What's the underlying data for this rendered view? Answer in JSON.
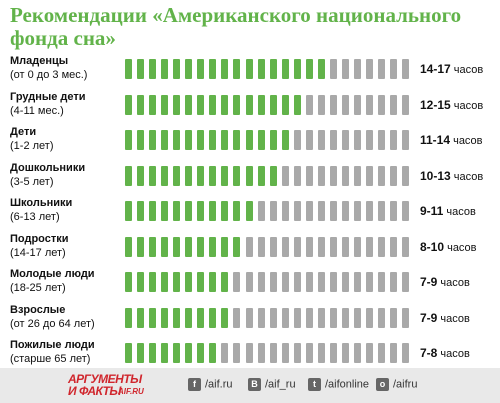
{
  "title": "Рекомендации «Американского национального фонда сна»",
  "colors": {
    "filled": "#62b34a",
    "empty": "#a9a9a9",
    "title": "#62b34a",
    "logo": "#d0262d"
  },
  "total_segments": 24,
  "unit": "часов",
  "chart_data": {
    "type": "bar",
    "title": "Рекомендации «Американского национального фонда сна»",
    "unit": "часов",
    "scale_max_hours": 24,
    "categories": [
      "Младенцы (от 0 до 3 мес.)",
      "Грудные дети (4-11 мес.)",
      "Дети (1-2 лет)",
      "Дошкольники (3-5 лет)",
      "Школьники (6-13 лет)",
      "Подростки (14-17 лет)",
      "Молодые люди (18-25 лет)",
      "Взрослые (от 26 до 64 лет)",
      "Пожилые люди (старше 65 лет)"
    ],
    "series": [
      {
        "values": [
          17,
          15,
          14,
          13,
          11,
          10,
          9,
          9,
          8
        ]
      }
    ],
    "ranges": [
      "14-17",
      "12-15",
      "11-14",
      "10-13",
      "9-11",
      "8-10",
      "7-9",
      "7-9",
      "7-8"
    ],
    "rows": [
      {
        "name": "Младенцы",
        "sub": "(от 0 до 3 мес.)",
        "range": "14-17",
        "filled": 17
      },
      {
        "name": "Грудные дети",
        "sub": "(4-11 мес.)",
        "range": "12-15",
        "filled": 15
      },
      {
        "name": "Дети",
        "sub": "(1-2 лет)",
        "range": "11-14",
        "filled": 14
      },
      {
        "name": "Дошкольники",
        "sub": "(3-5 лет)",
        "range": "10-13",
        "filled": 13
      },
      {
        "name": "Школьники",
        "sub": "(6-13 лет)",
        "range": "9-11",
        "filled": 11
      },
      {
        "name": "Подростки",
        "sub": "(14-17 лет)",
        "range": "8-10",
        "filled": 10
      },
      {
        "name": "Молодые люди",
        "sub": "(18-25 лет)",
        "range": "7-9",
        "filled": 9
      },
      {
        "name": "Взрослые",
        "sub": "(от 26 до 64 лет)",
        "range": "7-9",
        "filled": 9
      },
      {
        "name": "Пожилые люди",
        "sub": "(старше 65 лет)",
        "range": "7-8",
        "filled": 8
      }
    ]
  },
  "footer": {
    "logo_line1": "АРГУМЕНТЫ",
    "logo_line2": "И ФАКТЫ",
    "logo_site": "AIF.RU",
    "social": [
      {
        "icon": "facebook-icon",
        "glyph": "f",
        "text": "/aif.ru"
      },
      {
        "icon": "vk-icon",
        "glyph": "В",
        "text": "/aif_ru"
      },
      {
        "icon": "twitter-icon",
        "glyph": "t",
        "text": "/aifonline"
      },
      {
        "icon": "odnoklassniki-icon",
        "glyph": "о",
        "text": "/aifru"
      }
    ]
  }
}
